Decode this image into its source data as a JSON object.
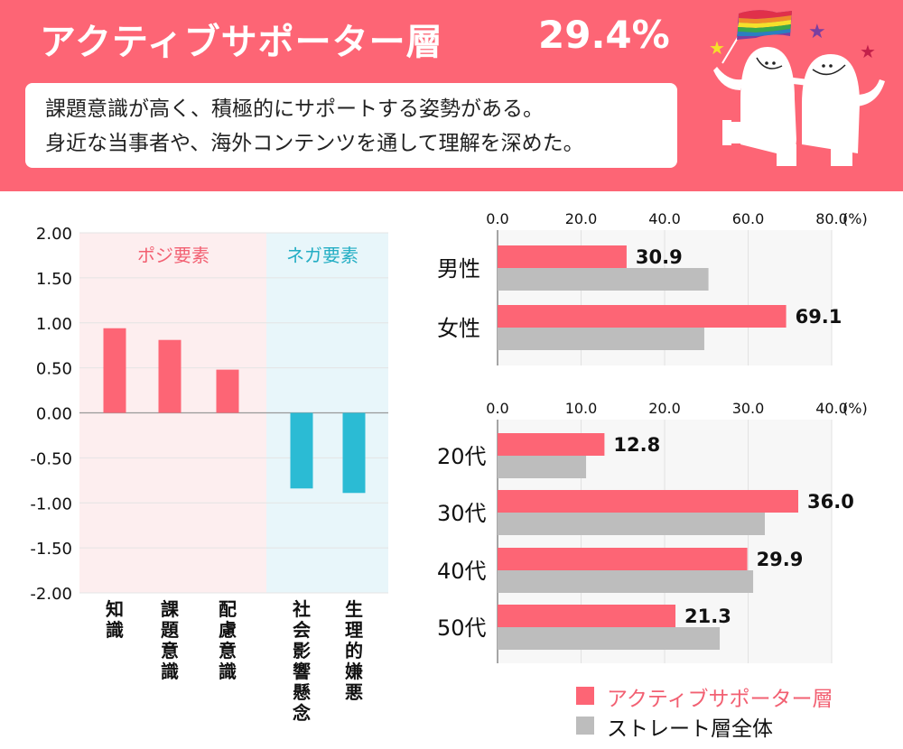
{
  "header": {
    "title": "アクティブサポーター層",
    "percentage": "29.4%",
    "description_lines": [
      "課題意識が高く、積極的にサポートする姿勢がある。",
      "身近な当事者や、海外コンテンツを通して理解を深めた。"
    ],
    "illustration": "two-characters-with-rainbow-flag"
  },
  "colors": {
    "header_bg": "#fd6575",
    "active": "#fd6575",
    "straight": "#bdbdbd",
    "negative": "#2bbbd4",
    "pos_region": "#fdeeef",
    "neg_region": "#e8f6fa"
  },
  "chart_data": [
    {
      "type": "bar",
      "categories": [
        "知識",
        "課題意識",
        "配慮意識",
        "社会影響懸念",
        "生理的嫌悪"
      ],
      "values": [
        0.94,
        0.81,
        0.48,
        -0.84,
        -0.89
      ],
      "groups": [
        {
          "label": "ポジ要素",
          "categories": [
            0,
            1,
            2
          ]
        },
        {
          "label": "ネガ要素",
          "categories": [
            3,
            4
          ]
        }
      ],
      "yticks": [
        "2.00",
        "1.50",
        "1.00",
        "0.50",
        "0.00",
        "-0.50",
        "-1.00",
        "-1.50",
        "-2.00"
      ],
      "ylim": [
        -2,
        2
      ],
      "grid": true
    },
    {
      "type": "bar",
      "orientation": "horizontal",
      "categories": [
        "男性",
        "女性"
      ],
      "series": [
        {
          "name": "アクティブサポーター層",
          "values": [
            30.9,
            69.1
          ],
          "labels": [
            "30.9",
            "69.1"
          ]
        },
        {
          "name": "ストレート層全体",
          "values": [
            50.5,
            49.5
          ]
        }
      ],
      "xticks": [
        "0.0",
        "20.0",
        "40.0",
        "60.0",
        "80.0"
      ],
      "xunit": "(%)",
      "xlim": [
        0,
        80
      ],
      "grid": true
    },
    {
      "type": "bar",
      "orientation": "horizontal",
      "categories": [
        "20代",
        "30代",
        "40代",
        "50代"
      ],
      "series": [
        {
          "name": "アクティブサポーター層",
          "values": [
            12.8,
            36.0,
            29.9,
            21.3
          ],
          "labels": [
            "12.8",
            "36.0",
            "29.9",
            "21.3"
          ]
        },
        {
          "name": "ストレート層全体",
          "values": [
            10.6,
            32.0,
            30.6,
            26.6
          ]
        }
      ],
      "xticks": [
        "0.0",
        "10.0",
        "20.0",
        "30.0",
        "40.0"
      ],
      "xunit": "(%)",
      "xlim": [
        0,
        40
      ],
      "grid": true
    }
  ],
  "legend": [
    {
      "label": "アクティブサポーター層"
    },
    {
      "label": "ストレート層全体"
    }
  ]
}
